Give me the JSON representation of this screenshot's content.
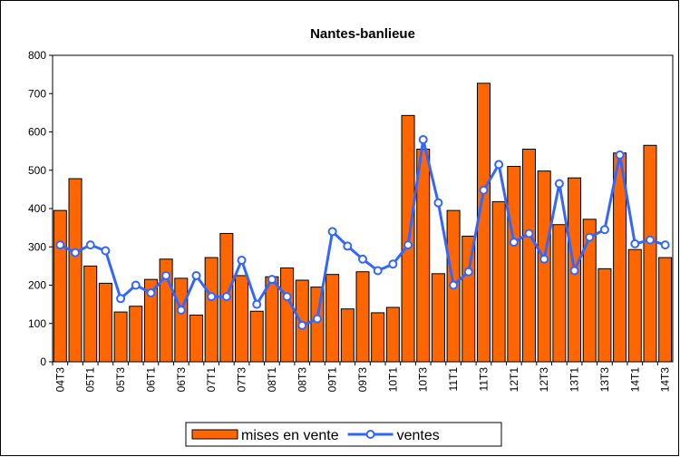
{
  "chart_data": {
    "type": "bar-line",
    "title": "Nantes-banlieue",
    "categories": [
      "04T3",
      null,
      "05T1",
      null,
      "05T3",
      null,
      "06T1",
      null,
      "06T3",
      null,
      "07T1",
      null,
      "07T3",
      null,
      "08T1",
      null,
      "08T3",
      null,
      "09T1",
      null,
      "09T3",
      null,
      "10T1",
      null,
      "10T3",
      null,
      "11T1",
      null,
      "11T3",
      null,
      "12T1",
      null,
      "12T3",
      null,
      "13T1",
      null,
      "13T3",
      null,
      "14T1",
      null,
      "14T3"
    ],
    "series": [
      {
        "name": "mises en vente",
        "type": "bar",
        "color": "#ff6600",
        "values": [
          395,
          478,
          250,
          205,
          130,
          145,
          215,
          268,
          218,
          122,
          272,
          335,
          225,
          132,
          222,
          245,
          213,
          195,
          228,
          138,
          235,
          128,
          142,
          643,
          555,
          230,
          395,
          328,
          727,
          418,
          510,
          555,
          498,
          358,
          480,
          372,
          243,
          545,
          293,
          565,
          272
        ]
      },
      {
        "name": "ventes",
        "type": "line",
        "color": "#3366ff",
        "values": [
          305,
          285,
          305,
          290,
          165,
          200,
          180,
          225,
          135,
          225,
          170,
          170,
          265,
          150,
          215,
          170,
          95,
          112,
          340,
          302,
          268,
          238,
          255,
          305,
          580,
          415,
          200,
          235,
          448,
          515,
          312,
          335,
          268,
          465,
          238,
          325,
          345,
          540,
          308,
          318,
          305
        ]
      }
    ],
    "ylim": [
      0,
      800
    ],
    "yticks": [
      0,
      100,
      200,
      300,
      400,
      500,
      600,
      700,
      800
    ],
    "grid": false,
    "legend": "bottom"
  }
}
